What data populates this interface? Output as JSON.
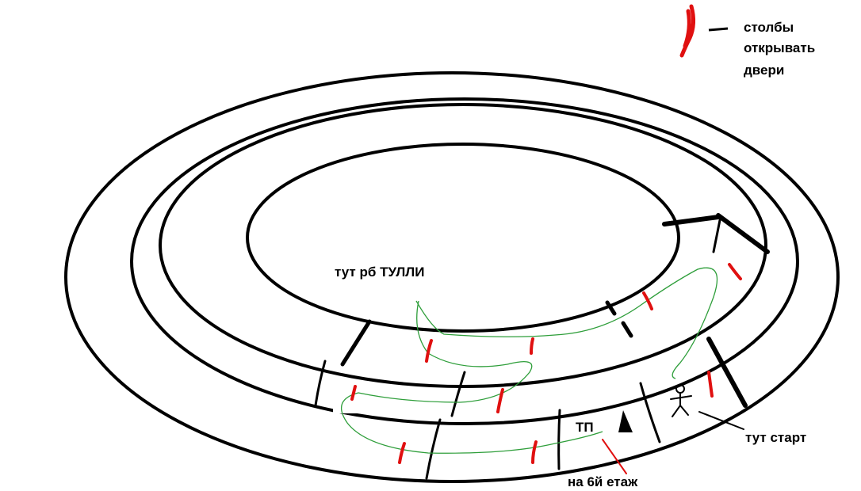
{
  "legend": {
    "lines": [
      "столбы",
      "открывать",
      "двери"
    ]
  },
  "labels": {
    "boss": "тут рб ТУЛЛИ",
    "teleport": "ТП",
    "floor": "на 6й етаж",
    "start": "тут старт"
  },
  "colors": {
    "walls": "#000000",
    "pillars": "#e01010",
    "route": "#2e9e3a",
    "background": "#ffffff"
  },
  "icons": {
    "player": "stick-figure-icon",
    "teleport": "teleport-cone-icon",
    "pillar": "red-pillar-icon"
  }
}
